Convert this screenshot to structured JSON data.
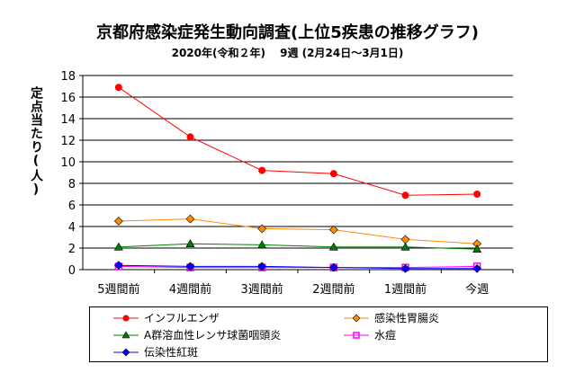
{
  "chart_data": {
    "type": "line",
    "title": "京都府感染症発生動向調査(上位5疾患の推移グラフ)",
    "subtitle": "2020年(令和２年)　 9週 (2月24日～3月1日)",
    "ylabel": "定点当たり(人)",
    "xlabel": "",
    "categories": [
      "5週間前",
      "4週間前",
      "3週間前",
      "2週間前",
      "1週間前",
      "今週"
    ],
    "ylim": [
      0,
      18
    ],
    "yticks": [
      0,
      2,
      4,
      6,
      8,
      10,
      12,
      14,
      16,
      18
    ],
    "grid": true,
    "legend_position": "bottom",
    "series": [
      {
        "name": "インフルエンザ",
        "color": "#ff0000",
        "marker": "circle",
        "values": [
          16.9,
          12.3,
          9.2,
          8.9,
          6.9,
          7.0
        ]
      },
      {
        "name": "感染性胃腸炎",
        "color": "#ff8c00",
        "marker": "diamond",
        "values": [
          4.5,
          4.7,
          3.8,
          3.7,
          2.8,
          2.4
        ]
      },
      {
        "name": "A群溶血性レンサ球菌咽頭炎",
        "color": "#008000",
        "marker": "triangle",
        "values": [
          2.1,
          2.4,
          2.3,
          2.1,
          2.1,
          1.9
        ]
      },
      {
        "name": "水痘",
        "color": "#ff00ff",
        "marker": "square",
        "values": [
          0.3,
          0.2,
          0.2,
          0.2,
          0.2,
          0.3
        ]
      },
      {
        "name": "伝染性紅斑",
        "color": "#0000ff",
        "marker": "diamond",
        "values": [
          0.4,
          0.3,
          0.3,
          0.2,
          0.1,
          0.1
        ]
      }
    ]
  }
}
